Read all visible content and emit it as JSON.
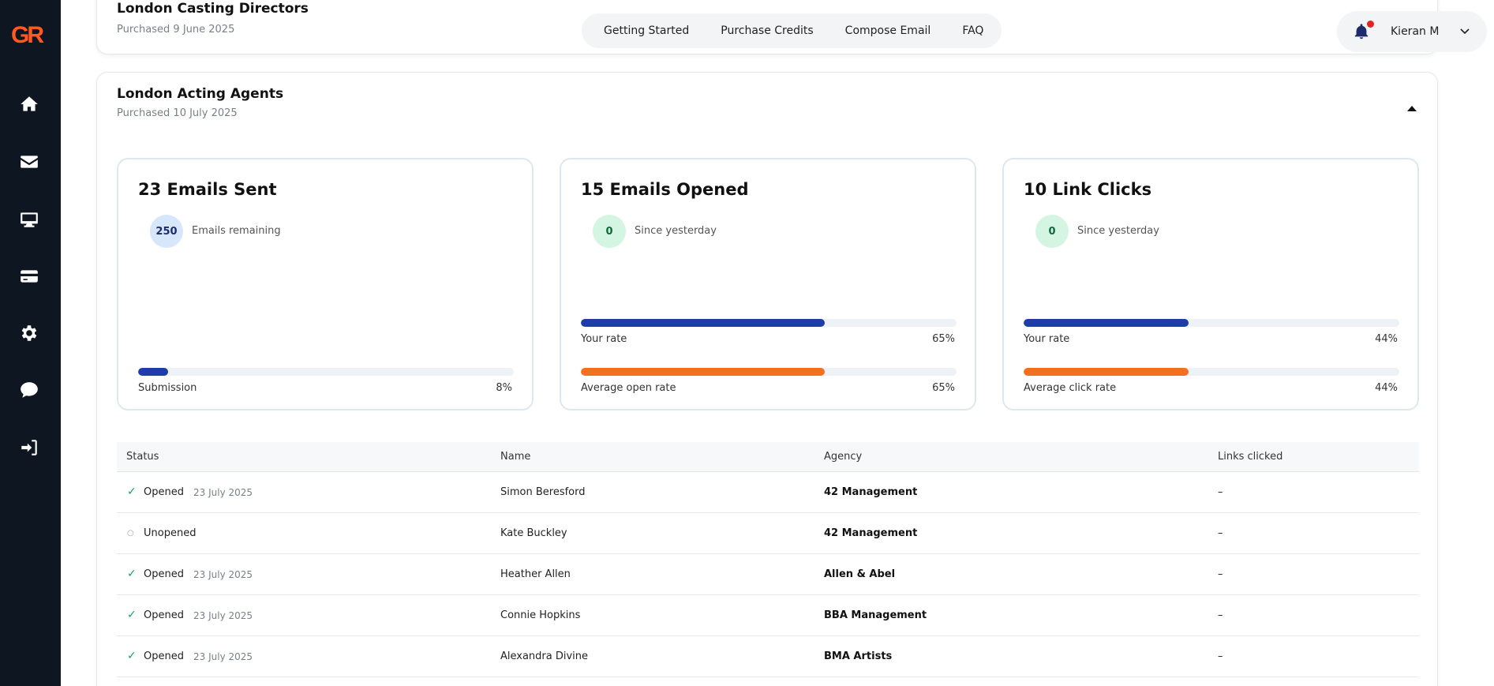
{
  "brand": {
    "logo_text": "GR",
    "accent": "#ff5a1f"
  },
  "sidebar": {
    "items": [
      {
        "name": "home",
        "icon": "home-icon"
      },
      {
        "name": "mail",
        "icon": "envelope-icon"
      },
      {
        "name": "desktop",
        "icon": "monitor-icon"
      },
      {
        "name": "billing",
        "icon": "credit-card-icon"
      },
      {
        "name": "settings",
        "icon": "gear-icon"
      },
      {
        "name": "chat",
        "icon": "chat-bubble-icon"
      },
      {
        "name": "logout",
        "icon": "sign-in-icon"
      }
    ]
  },
  "topnav": {
    "links": [
      "Getting Started",
      "Purchase Credits",
      "Compose Email",
      "FAQ"
    ]
  },
  "user": {
    "name": "Kieran M",
    "notification_dot": true
  },
  "campaign_collapsed": {
    "title": "London Casting Directors",
    "purchased": "Purchased 9 June 2025"
  },
  "campaign": {
    "title": "London Acting Agents",
    "purchased": "Purchased 10 July 2025",
    "stats": {
      "sent": {
        "heading": "23 Emails Sent",
        "badge": "250",
        "badge_label": "Emails remaining",
        "bars": [
          {
            "label": "Submission",
            "value": "8%",
            "fraction": 0.08,
            "color": "blue"
          }
        ]
      },
      "opened": {
        "heading": "15 Emails Opened",
        "badge": "0",
        "badge_label": "Since yesterday",
        "bars": [
          {
            "label": "Your rate",
            "value": "65%",
            "fraction": 0.65,
            "color": "blue"
          },
          {
            "label": "Average open rate",
            "value": "65%",
            "fraction": 0.65,
            "color": "orange"
          }
        ]
      },
      "clicks": {
        "heading": "10 Link Clicks",
        "badge": "0",
        "badge_label": "Since yesterday",
        "bars": [
          {
            "label": "Your rate",
            "value": "44%",
            "fraction": 0.44,
            "color": "blue"
          },
          {
            "label": "Average click rate",
            "value": "44%",
            "fraction": 0.44,
            "color": "orange"
          }
        ]
      }
    },
    "table": {
      "headers": [
        "Status",
        "Name",
        "Agency",
        "Links clicked"
      ],
      "rows": [
        {
          "status": "Opened",
          "opened": true,
          "date": "23 July 2025",
          "name": "Simon Beresford",
          "agency": "42 Management",
          "links": "–"
        },
        {
          "status": "Unopened",
          "opened": false,
          "date": "",
          "name": "Kate Buckley",
          "agency": "42 Management",
          "links": "–"
        },
        {
          "status": "Opened",
          "opened": true,
          "date": "23 July 2025",
          "name": "Heather Allen",
          "agency": "Allen & Abel",
          "links": "–"
        },
        {
          "status": "Opened",
          "opened": true,
          "date": "23 July 2025",
          "name": "Connie Hopkins",
          "agency": "BBA Management",
          "links": "–"
        },
        {
          "status": "Opened",
          "opened": true,
          "date": "23 July 2025",
          "name": "Alexandra Divine",
          "agency": "BMA Artists",
          "links": "–"
        }
      ]
    }
  },
  "colors": {
    "bar_blue": "#1e3da8",
    "bar_orange": "#f37021",
    "sidebar_bg": "#0e1621",
    "check_green": "#18a35c"
  }
}
